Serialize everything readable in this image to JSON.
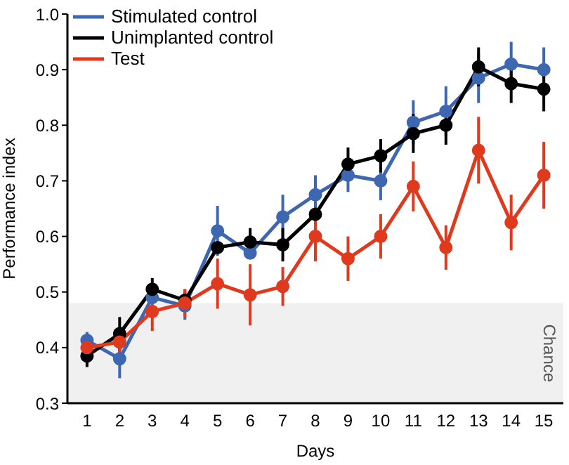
{
  "chart_data": {
    "type": "line",
    "xlabel": "Days",
    "ylabel": "Performance index",
    "x": [
      1,
      2,
      3,
      4,
      5,
      6,
      7,
      8,
      9,
      10,
      11,
      12,
      13,
      14,
      15
    ],
    "xlim": [
      0.4,
      15.6
    ],
    "xticks": [
      1,
      2,
      3,
      4,
      5,
      6,
      7,
      8,
      9,
      10,
      11,
      12,
      13,
      14,
      15
    ],
    "ylim": [
      0.3,
      1.0
    ],
    "yticks": [
      0.3,
      0.4,
      0.5,
      0.6,
      0.7,
      0.8,
      0.9,
      {
        "value": 1,
        "label": "1.0"
      }
    ],
    "grid": false,
    "legend": "top left",
    "marker": "circle",
    "line_style": "solid",
    "bands": [
      {
        "axis": "y",
        "from": 0.3,
        "to": 0.48,
        "label": "Chance",
        "color": "#f0f0f0"
      }
    ],
    "series": [
      {
        "name": "Stimulated control",
        "color": "#3d67b0",
        "values": [
          0.413,
          0.38,
          0.49,
          0.475,
          0.61,
          0.57,
          0.635,
          0.675,
          0.71,
          0.7,
          0.805,
          0.825,
          0.885,
          0.91,
          0.9
        ],
        "errors": [
          0.015,
          0.035,
          null,
          0.025,
          0.045,
          null,
          0.04,
          0.035,
          0.03,
          0.035,
          0.04,
          0.045,
          0.045,
          0.04,
          0.04
        ]
      },
      {
        "name": "Unimplanted control",
        "color": "#000000",
        "values": [
          0.385,
          0.425,
          0.505,
          0.485,
          0.58,
          0.59,
          0.585,
          0.64,
          0.73,
          0.745,
          0.785,
          0.8,
          0.905,
          0.875,
          0.865
        ],
        "errors": [
          0.02,
          0.03,
          0.02,
          0.02,
          null,
          0.025,
          0.03,
          null,
          0.03,
          0.03,
          0.035,
          0.035,
          0.035,
          0.035,
          0.04
        ]
      },
      {
        "name": "Test",
        "color": "#e03a1e",
        "values": [
          0.4,
          0.41,
          0.465,
          0.48,
          0.515,
          0.495,
          0.51,
          0.6,
          0.56,
          0.6,
          0.69,
          0.58,
          0.755,
          0.625,
          0.71
        ],
        "errors": [
          null,
          0.02,
          0.035,
          0.025,
          0.045,
          0.055,
          0.035,
          0.045,
          0.04,
          0.04,
          0.045,
          0.04,
          0.06,
          0.05,
          0.06
        ]
      }
    ]
  }
}
